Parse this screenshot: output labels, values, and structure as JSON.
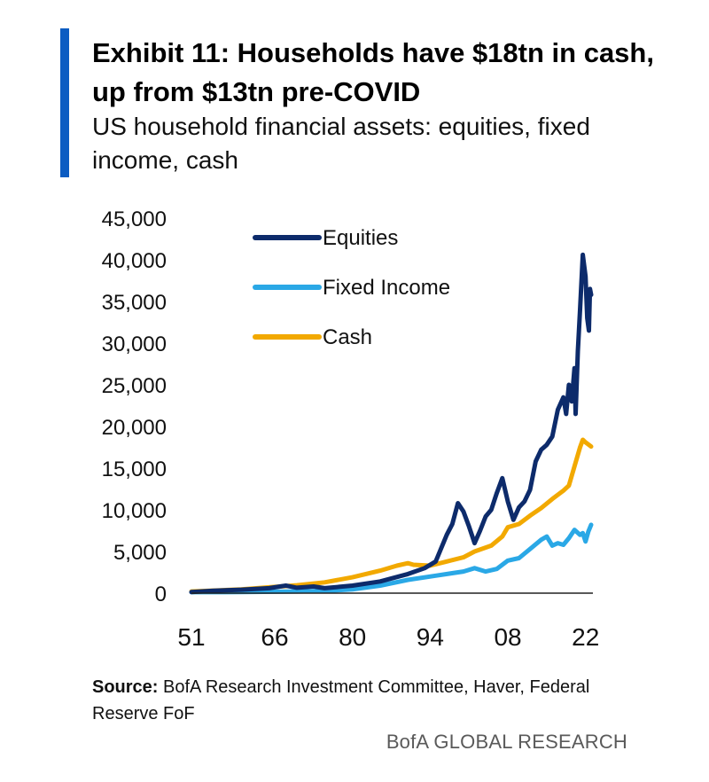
{
  "title": "Exhibit 11: Households have $18tn in cash, up from $13tn pre-COVID",
  "subtitle": "US household financial assets: equities, fixed income, cash",
  "source_label": "Source:",
  "source_text": "BofA Research Investment Committee, Haver, Federal Reserve FoF",
  "brand": "BofA GLOBAL RESEARCH",
  "colors": {
    "accent": "#0b5cc2"
  },
  "chart_data": {
    "type": "line",
    "title": "Exhibit 11: Households have $18tn in cash, up from $13tn pre-COVID",
    "subtitle": "US household financial assets: equities, fixed income, cash",
    "xlabel": "",
    "ylabel": "",
    "xlim": [
      1951,
      2023
    ],
    "ylim": [
      0,
      45000
    ],
    "x_ticks": [
      1951,
      1966,
      1980,
      1994,
      2008,
      2022
    ],
    "x_tick_labels": [
      "51",
      "66",
      "80",
      "94",
      "08",
      "22"
    ],
    "y_ticks": [
      0,
      5000,
      10000,
      15000,
      20000,
      25000,
      30000,
      35000,
      40000,
      45000
    ],
    "y_tick_labels": [
      "0",
      "5,000",
      "10,000",
      "15,000",
      "20,000",
      "25,000",
      "30,000",
      "35,000",
      "40,000",
      "45,000"
    ],
    "grid": false,
    "legend_position": "top-left",
    "series": [
      {
        "name": "Equities",
        "color": "#0d2b6b",
        "points": [
          [
            1951,
            130
          ],
          [
            1955,
            300
          ],
          [
            1960,
            420
          ],
          [
            1965,
            600
          ],
          [
            1968,
            900
          ],
          [
            1970,
            650
          ],
          [
            1973,
            800
          ],
          [
            1975,
            600
          ],
          [
            1980,
            900
          ],
          [
            1985,
            1400
          ],
          [
            1990,
            2300
          ],
          [
            1993,
            3000
          ],
          [
            1995,
            3800
          ],
          [
            1997,
            7000
          ],
          [
            1998,
            8300
          ],
          [
            1999,
            10800
          ],
          [
            2000,
            9800
          ],
          [
            2001,
            8000
          ],
          [
            2002,
            6000
          ],
          [
            2003,
            7500
          ],
          [
            2004,
            9200
          ],
          [
            2005,
            10000
          ],
          [
            2006,
            12000
          ],
          [
            2007,
            13800
          ],
          [
            2008,
            11000
          ],
          [
            2009,
            8800
          ],
          [
            2010,
            10300
          ],
          [
            2011,
            11000
          ],
          [
            2012,
            12400
          ],
          [
            2013,
            15800
          ],
          [
            2014,
            17200
          ],
          [
            2015,
            17800
          ],
          [
            2016,
            18800
          ],
          [
            2017,
            22000
          ],
          [
            2018,
            23500
          ],
          [
            2018.5,
            21500
          ],
          [
            2019,
            25000
          ],
          [
            2019.5,
            23000
          ],
          [
            2020,
            27000
          ],
          [
            2020.2,
            21500
          ],
          [
            2020.6,
            29000
          ],
          [
            2021,
            34000
          ],
          [
            2021.5,
            40600
          ],
          [
            2022,
            38000
          ],
          [
            2022.3,
            33000
          ],
          [
            2022.6,
            31500
          ],
          [
            2022.8,
            36500
          ],
          [
            2023,
            35800
          ]
        ]
      },
      {
        "name": "Fixed Income",
        "color": "#2aa8e6",
        "points": [
          [
            1951,
            120
          ],
          [
            1960,
            130
          ],
          [
            1970,
            200
          ],
          [
            1975,
            250
          ],
          [
            1980,
            450
          ],
          [
            1985,
            900
          ],
          [
            1990,
            1600
          ],
          [
            1995,
            2100
          ],
          [
            2000,
            2600
          ],
          [
            2002,
            3000
          ],
          [
            2004,
            2600
          ],
          [
            2006,
            2900
          ],
          [
            2008,
            3900
          ],
          [
            2010,
            4200
          ],
          [
            2012,
            5300
          ],
          [
            2014,
            6400
          ],
          [
            2015,
            6800
          ],
          [
            2016,
            5700
          ],
          [
            2017,
            6000
          ],
          [
            2018,
            5800
          ],
          [
            2019,
            6600
          ],
          [
            2020,
            7600
          ],
          [
            2021,
            7000
          ],
          [
            2021.5,
            7200
          ],
          [
            2022,
            6200
          ],
          [
            2022.5,
            7400
          ],
          [
            2023,
            8200
          ]
        ]
      },
      {
        "name": "Cash",
        "color": "#f2a900",
        "points": [
          [
            1951,
            200
          ],
          [
            1960,
            450
          ],
          [
            1965,
            700
          ],
          [
            1970,
            950
          ],
          [
            1975,
            1300
          ],
          [
            1980,
            1900
          ],
          [
            1985,
            2700
          ],
          [
            1988,
            3300
          ],
          [
            1990,
            3600
          ],
          [
            1991,
            3400
          ],
          [
            1994,
            3300
          ],
          [
            1997,
            3800
          ],
          [
            2000,
            4300
          ],
          [
            2002,
            5000
          ],
          [
            2005,
            5700
          ],
          [
            2007,
            6800
          ],
          [
            2008,
            7900
          ],
          [
            2010,
            8300
          ],
          [
            2012,
            9300
          ],
          [
            2014,
            10200
          ],
          [
            2016,
            11300
          ],
          [
            2018,
            12300
          ],
          [
            2019,
            12900
          ],
          [
            2020,
            15200
          ],
          [
            2021,
            17500
          ],
          [
            2021.5,
            18400
          ],
          [
            2022,
            18100
          ],
          [
            2023,
            17600
          ]
        ]
      }
    ]
  }
}
